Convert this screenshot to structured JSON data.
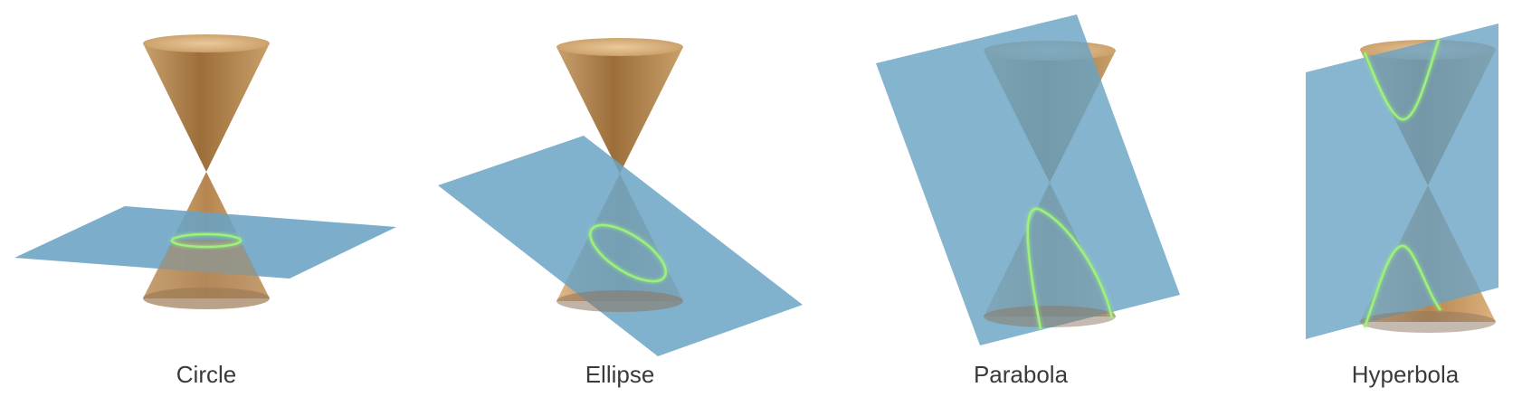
{
  "colors": {
    "cone_light": "#e3bd8c",
    "cone_mid": "#b98a52",
    "cone_dark": "#8b6131",
    "plane": "#6aa3c4",
    "curve": "#9cf27a"
  },
  "panels": [
    {
      "id": "circle",
      "label": "Circle",
      "section": "circle"
    },
    {
      "id": "ellipse",
      "label": "Ellipse",
      "section": "ellipse"
    },
    {
      "id": "parabola",
      "label": "Parabola",
      "section": "parabola"
    },
    {
      "id": "hyperbola",
      "label": "Hyperbola",
      "section": "hyperbola"
    }
  ]
}
